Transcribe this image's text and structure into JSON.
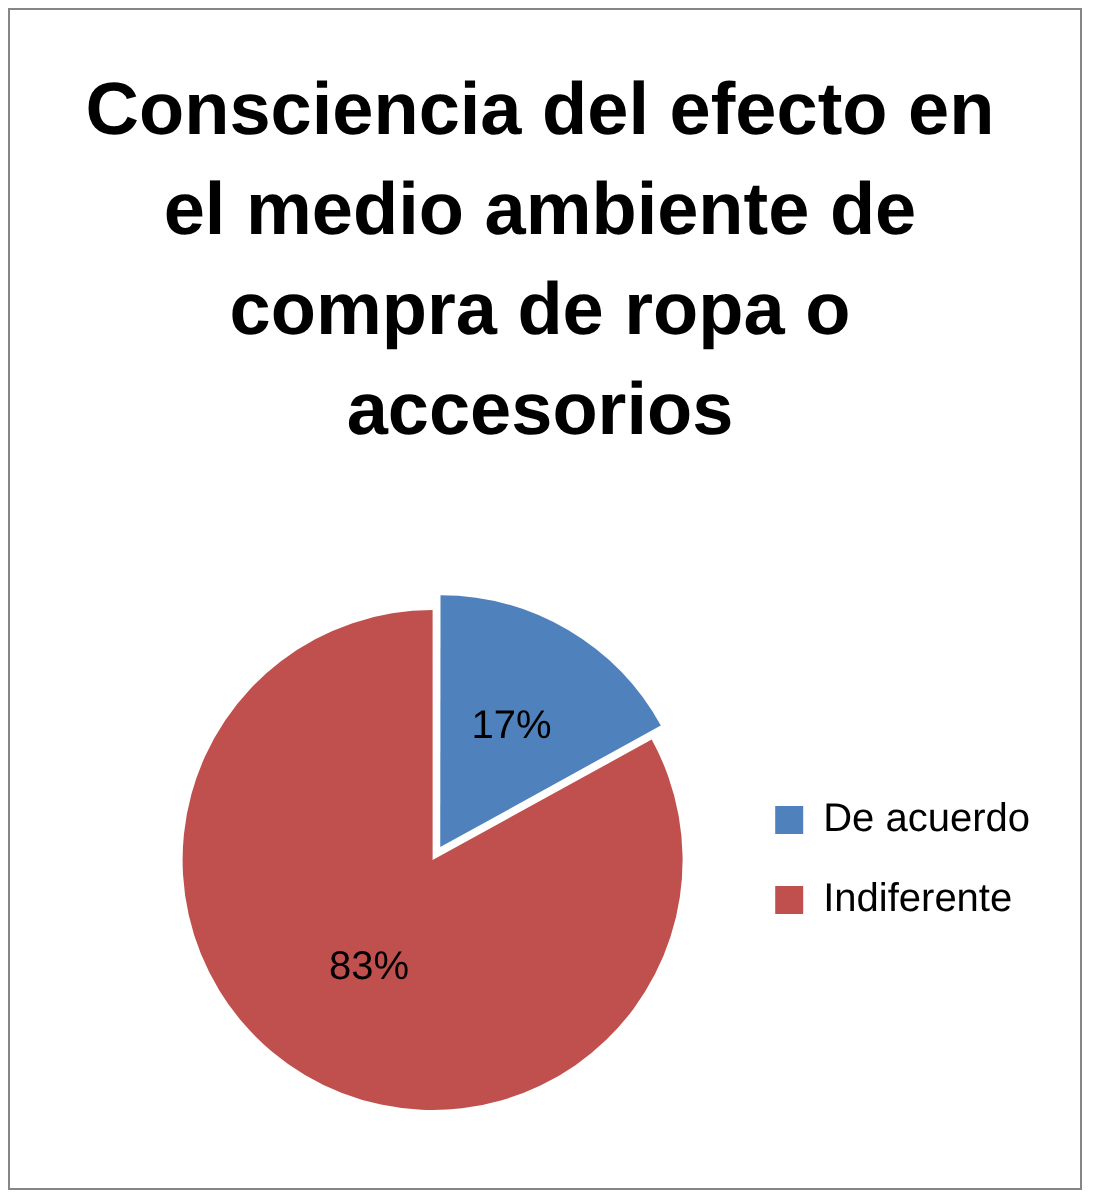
{
  "chart_data": {
    "type": "pie",
    "title": "Consciencia del efecto en el medio ambiente de compra de ropa o accesorios",
    "categories": [
      "De acuerdo",
      "Indiferente"
    ],
    "values": [
      17,
      83
    ],
    "value_labels": [
      "17%",
      "83%"
    ],
    "colors": [
      "#4f81bd",
      "#c0504d"
    ],
    "legend": "right"
  }
}
